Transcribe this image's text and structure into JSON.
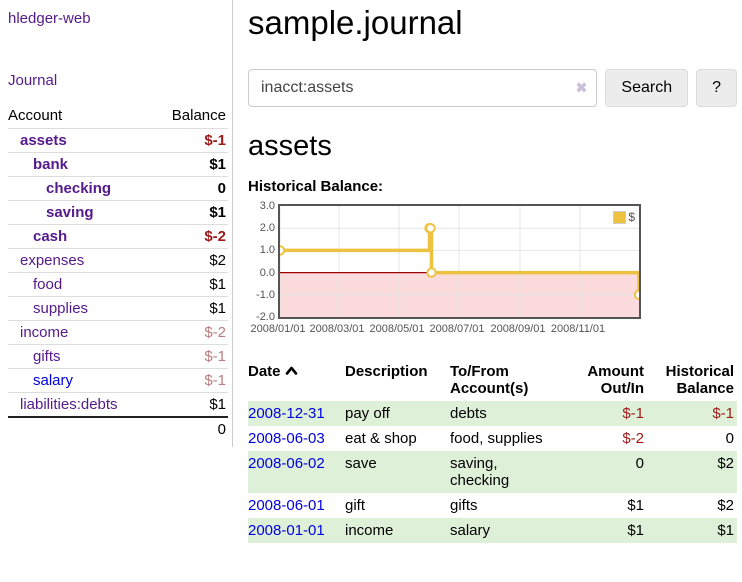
{
  "app": {
    "brand": "hledger-web",
    "journal_link": "Journal"
  },
  "sidebar": {
    "headers": {
      "account": "Account",
      "balance": "Balance"
    },
    "accounts": [
      {
        "name": "assets",
        "balance": "$-1"
      },
      {
        "name": "bank",
        "balance": "$1"
      },
      {
        "name": "checking",
        "balance": "0"
      },
      {
        "name": "saving",
        "balance": "$1"
      },
      {
        "name": "cash",
        "balance": "$-2"
      },
      {
        "name": "expenses",
        "balance": "$2"
      },
      {
        "name": "food",
        "balance": "$1"
      },
      {
        "name": "supplies",
        "balance": "$1"
      },
      {
        "name": "income",
        "balance": "$-2"
      },
      {
        "name": "gifts",
        "balance": "$-1"
      },
      {
        "name": "salary",
        "balance": "$-1"
      },
      {
        "name": "liabilities:debts",
        "balance": "$1"
      }
    ],
    "total": "0"
  },
  "main": {
    "title": "sample.journal",
    "search": {
      "value": "inacct:assets",
      "placeholder": "",
      "clear_icon": "✖",
      "search_button": "Search",
      "help_button": "?"
    },
    "account_heading": "assets",
    "chart_label": "Historical Balance:"
  },
  "chart_data": {
    "type": "line",
    "step": true,
    "title": "Historical Balance:",
    "legend": {
      "label": "$",
      "position": "top-right"
    },
    "ylim": [
      -2,
      3
    ],
    "y_ticks": [
      "3.0",
      "2.0",
      "1.0",
      "0.0",
      "-1.0",
      "-2.0"
    ],
    "x_ticks": [
      "2008/01/01",
      "2008/03/01",
      "2008/05/01",
      "2008/07/01",
      "2008/09/01",
      "2008/11/01"
    ],
    "x_range": [
      "2008-01-01",
      "2008-12-31"
    ],
    "grid": true,
    "series": [
      {
        "name": "$",
        "color": "#edc240",
        "points": [
          [
            "2008-01-01",
            1
          ],
          [
            "2008-06-01",
            2
          ],
          [
            "2008-06-02",
            2
          ],
          [
            "2008-06-03",
            0
          ],
          [
            "2008-12-31",
            -1
          ]
        ]
      }
    ],
    "negative_region": {
      "below": 0,
      "fill": "#fbdbdb",
      "line_color": "#990000"
    }
  },
  "register": {
    "headers": {
      "date": "Date",
      "description": "Description",
      "accounts": "To/From Account(s)",
      "amount": "Amount Out/In",
      "balance": "Historical Balance"
    },
    "rows": [
      {
        "date": "2008-12-31",
        "description": "pay off",
        "accounts": "debts",
        "amount": "$-1",
        "balance": "$-1"
      },
      {
        "date": "2008-06-03",
        "description": "eat & shop",
        "accounts": "food, supplies",
        "amount": "$-2",
        "balance": "0"
      },
      {
        "date": "2008-06-02",
        "description": "save",
        "accounts": "saving, checking",
        "amount": "0",
        "balance": "$2"
      },
      {
        "date": "2008-06-01",
        "description": "gift",
        "accounts": "gifts",
        "amount": "$1",
        "balance": "$2"
      },
      {
        "date": "2008-01-01",
        "description": "income",
        "accounts": "salary",
        "amount": "$1",
        "balance": "$1"
      }
    ]
  }
}
